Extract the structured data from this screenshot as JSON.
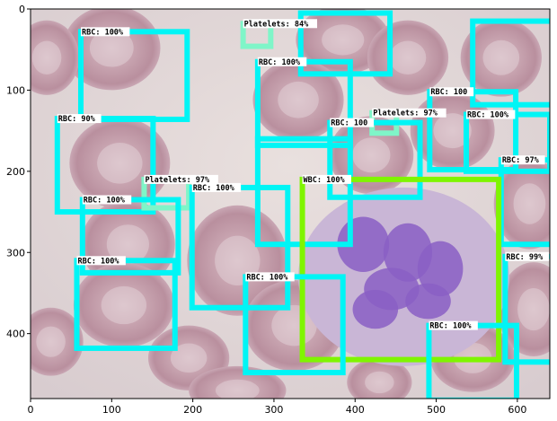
{
  "figure": {
    "x_ticks": [
      "0",
      "100",
      "200",
      "300",
      "400",
      "500",
      "600"
    ],
    "y_ticks": [
      "0",
      "100",
      "200",
      "300",
      "400"
    ],
    "xlim": [
      0,
      640
    ],
    "ylim": [
      480,
      0
    ],
    "colors": {
      "rbc_box": "#00f5f5",
      "platelet_box": "#7ff5c8",
      "wbc_box": "#7ff500",
      "label_bg": "#ffffff"
    }
  },
  "detections": [
    {
      "label": "RBC: 100%",
      "cls": "rbc",
      "x1": 62,
      "y1": 28,
      "x2": 193,
      "y2": 136
    },
    {
      "label": "Platelets: 84%",
      "cls": "platelet",
      "x1": 262,
      "y1": 18,
      "x2": 296,
      "y2": 46
    },
    {
      "label": "",
      "cls": "rbc",
      "x1": 333,
      "y1": 5,
      "x2": 443,
      "y2": 80
    },
    {
      "label": "",
      "cls": "rbc",
      "x1": 545,
      "y1": 15,
      "x2": 645,
      "y2": 118
    },
    {
      "label": "RBC: 100%",
      "cls": "rbc",
      "x1": 280,
      "y1": 65,
      "x2": 394,
      "y2": 168
    },
    {
      "label": "Platelets: 97%",
      "cls": "platelet",
      "x1": 421,
      "y1": 128,
      "x2": 451,
      "y2": 153
    },
    {
      "label": "RBC: 100",
      "cls": "rbc",
      "x1": 492,
      "y1": 102,
      "x2": 598,
      "y2": 198
    },
    {
      "label": "RBC: 100%",
      "cls": "rbc",
      "x1": 537,
      "y1": 130,
      "x2": 640,
      "y2": 200
    },
    {
      "label": "RBC: 90%",
      "cls": "rbc",
      "x1": 33,
      "y1": 135,
      "x2": 151,
      "y2": 250
    },
    {
      "label": "RBC: 100",
      "cls": "rbc",
      "x1": 369,
      "y1": 140,
      "x2": 480,
      "y2": 232
    },
    {
      "label": "",
      "cls": "rbc",
      "x1": 280,
      "y1": 160,
      "x2": 394,
      "y2": 290
    },
    {
      "label": "RBC: 97%",
      "cls": "rbc",
      "x1": 580,
      "y1": 186,
      "x2": 643,
      "y2": 290
    },
    {
      "label": "Platelets: 97%",
      "cls": "platelet",
      "x1": 140,
      "y1": 210,
      "x2": 195,
      "y2": 245
    },
    {
      "label": "RBC: 100%",
      "cls": "rbc",
      "x1": 199,
      "y1": 220,
      "x2": 317,
      "y2": 368
    },
    {
      "label": "WBC: 100%",
      "cls": "wbc",
      "x1": 335,
      "y1": 210,
      "x2": 577,
      "y2": 432
    },
    {
      "label": "RBC: 100%",
      "cls": "rbc",
      "x1": 64,
      "y1": 235,
      "x2": 182,
      "y2": 325
    },
    {
      "label": "RBC: 100%",
      "cls": "rbc",
      "x1": 57,
      "y1": 310,
      "x2": 178,
      "y2": 418
    },
    {
      "label": "RBC: 99%",
      "cls": "rbc",
      "x1": 585,
      "y1": 305,
      "x2": 643,
      "y2": 435
    },
    {
      "label": "RBC: 100%",
      "cls": "rbc",
      "x1": 265,
      "y1": 330,
      "x2": 385,
      "y2": 448
    },
    {
      "label": "RBC: 100%",
      "cls": "rbc",
      "x1": 491,
      "y1": 390,
      "x2": 599,
      "y2": 482
    }
  ],
  "cells": {
    "rbc": [
      [
        100,
        48,
        60,
        52
      ],
      [
        385,
        38,
        58,
        42
      ],
      [
        580,
        60,
        50,
        48
      ],
      [
        330,
        112,
        56,
        50
      ],
      [
        110,
        190,
        62,
        56
      ],
      [
        520,
        150,
        52,
        48
      ],
      [
        420,
        180,
        52,
        48
      ],
      [
        615,
        240,
        44,
        56
      ],
      [
        255,
        310,
        62,
        68
      ],
      [
        120,
        290,
        58,
        54
      ],
      [
        115,
        365,
        62,
        52
      ],
      [
        325,
        390,
        62,
        56
      ],
      [
        620,
        370,
        44,
        58
      ],
      [
        545,
        430,
        52,
        42
      ],
      [
        25,
        410,
        40,
        42
      ],
      [
        195,
        430,
        50,
        40
      ],
      [
        20,
        60,
        40,
        46
      ],
      [
        465,
        60,
        50,
        46
      ],
      [
        255,
        470,
        60,
        30
      ],
      [
        430,
        460,
        40,
        30
      ]
    ],
    "wbc": [
      460,
      330,
      130,
      110
    ]
  }
}
